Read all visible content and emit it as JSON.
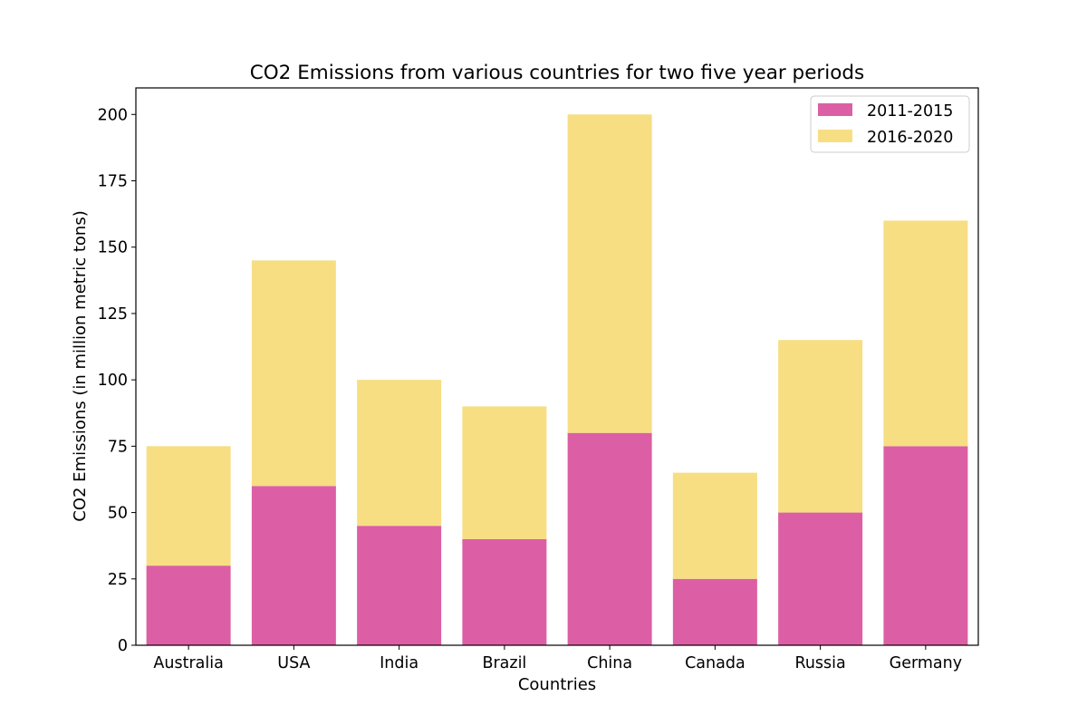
{
  "chart_data": {
    "type": "bar",
    "stacked": true,
    "title": "CO2 Emissions from various countries for two five year periods",
    "xlabel": "Countries",
    "ylabel": "CO2 Emissions (in million metric tons)",
    "categories": [
      "Australia",
      "USA",
      "India",
      "Brazil",
      "China",
      "Canada",
      "Russia",
      "Germany"
    ],
    "series": [
      {
        "name": "2011-2015",
        "color": "#dc5fa5",
        "values": [
          30,
          60,
          45,
          40,
          80,
          25,
          50,
          75
        ]
      },
      {
        "name": "2016-2020",
        "color": "#f7de82",
        "values": [
          45,
          85,
          55,
          50,
          120,
          40,
          65,
          85
        ]
      }
    ],
    "ylim": [
      0,
      210
    ],
    "yticks": [
      0,
      25,
      50,
      75,
      100,
      125,
      150,
      175,
      200
    ],
    "grid": false,
    "legend": {
      "position": "top-right"
    }
  }
}
